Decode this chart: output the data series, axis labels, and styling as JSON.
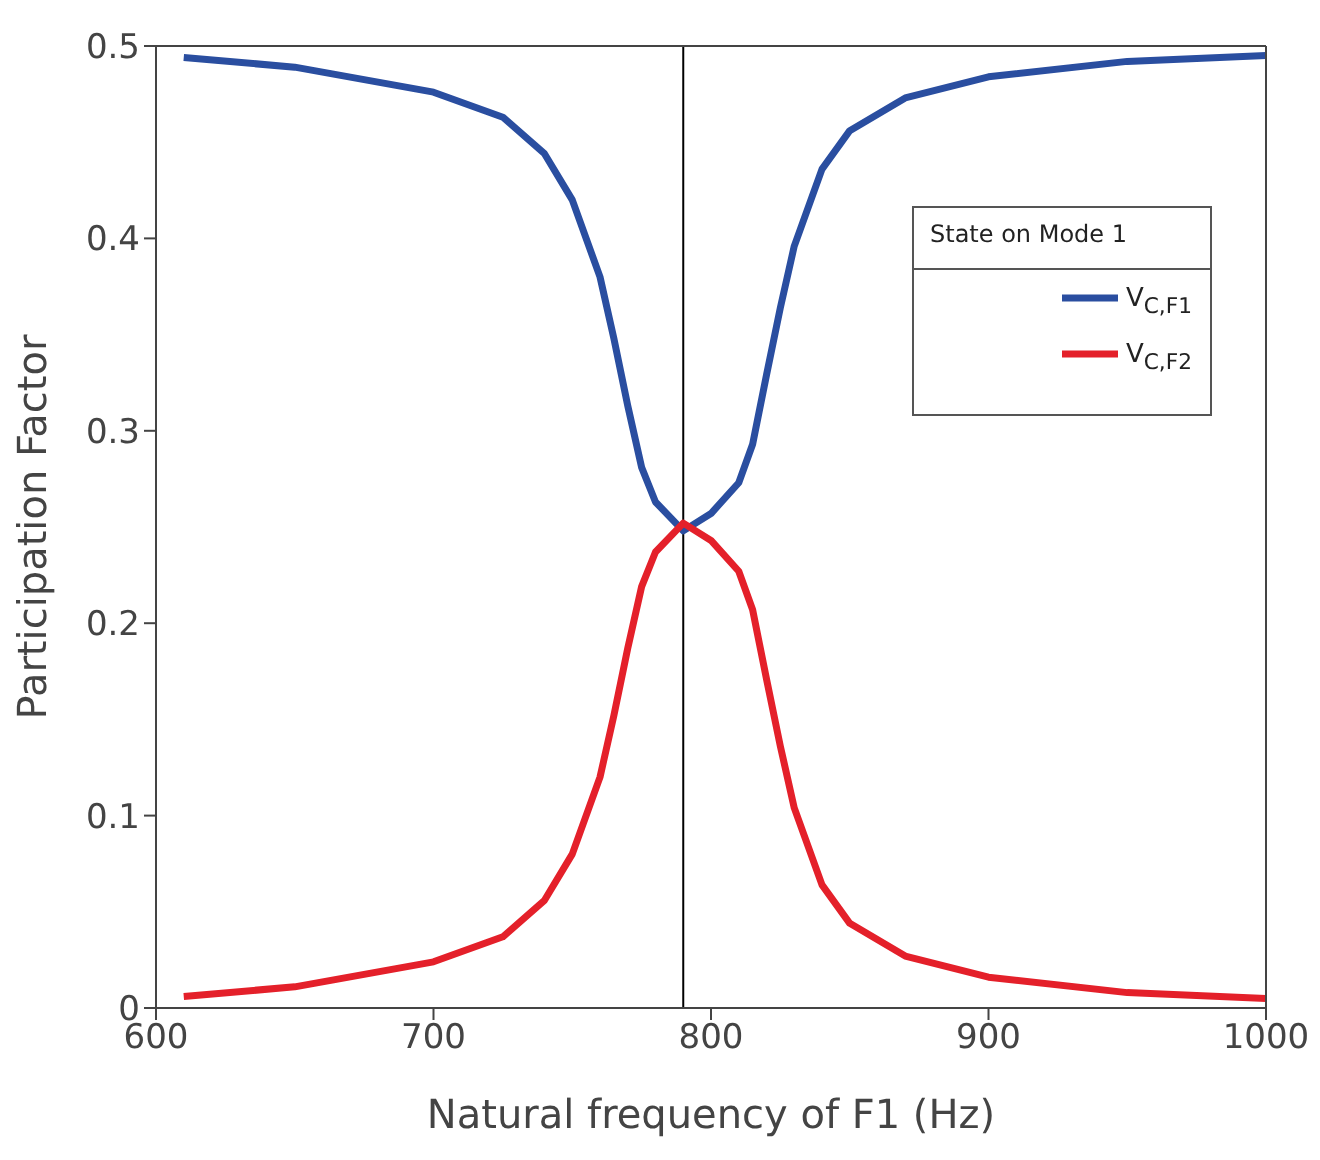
{
  "chart_data": {
    "type": "line",
    "xlabel": "Natural frequency of F1  (Hz)",
    "ylabel": "Participation Factor",
    "x": [
      610,
      650,
      700,
      725,
      740,
      750,
      760,
      765,
      770,
      775,
      780,
      790,
      800,
      810,
      815,
      820,
      825,
      830,
      840,
      850,
      870,
      900,
      950,
      1000
    ],
    "series": [
      {
        "name": "V$_{C,F1}$",
        "color": "#2a4ea0",
        "values": [
          0.494,
          0.489,
          0.476,
          0.463,
          0.444,
          0.42,
          0.38,
          0.348,
          0.313,
          0.281,
          0.263,
          0.248,
          0.257,
          0.273,
          0.293,
          0.329,
          0.364,
          0.396,
          0.436,
          0.456,
          0.473,
          0.484,
          0.492,
          0.495
        ]
      },
      {
        "name": "V$_{C,F2}$",
        "color": "#e4202a",
        "values": [
          0.006,
          0.011,
          0.024,
          0.037,
          0.056,
          0.08,
          0.12,
          0.152,
          0.187,
          0.219,
          0.237,
          0.252,
          0.243,
          0.227,
          0.207,
          0.171,
          0.136,
          0.104,
          0.064,
          0.044,
          0.027,
          0.016,
          0.008,
          0.005
        ]
      }
    ],
    "legend_title": "State on Mode 1",
    "legend": "top right",
    "xlim": [
      600,
      1000
    ],
    "xticks": [
      600,
      700,
      800,
      900,
      1000
    ],
    "ylim": [
      0,
      0.5
    ],
    "yticks": [
      0,
      0.1,
      0.2,
      0.3,
      0.4,
      0.5
    ],
    "ref_lines": [
      {
        "axis": "x",
        "value": 790,
        "color": "#000000"
      }
    ]
  }
}
